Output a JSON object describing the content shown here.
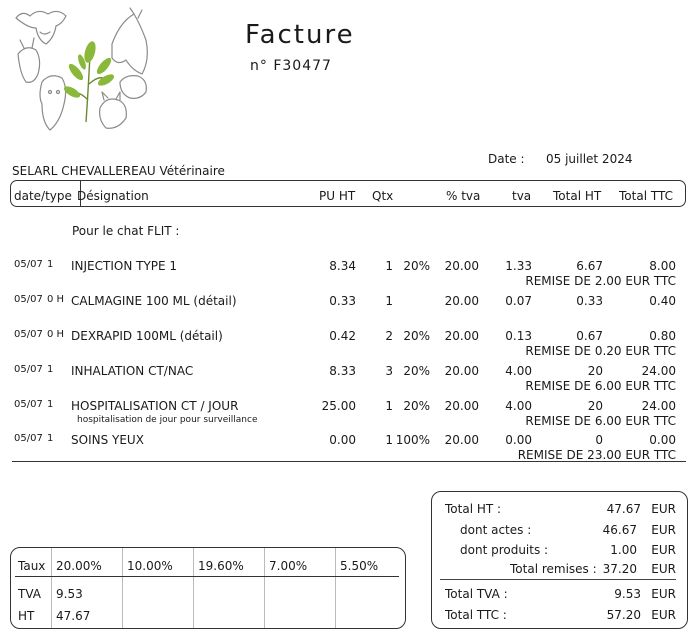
{
  "invoice": {
    "title": "Facture",
    "number": "n° F30477",
    "company": "SELARL CHEVALLEREAU Vétérinaire",
    "date_label": "Date :",
    "date": "05 juillet 2024"
  },
  "columns": {
    "date_type": "date/type",
    "designation": "Désignation",
    "pu_ht": "PU HT",
    "qty": "Qtx",
    "pct_tva": "% tva",
    "tva": "tva",
    "total_ht": "Total HT",
    "total_ttc": "Total TTC"
  },
  "section_label": "Pour le chat FLIT :",
  "items": [
    {
      "date": "05/07",
      "type": "1",
      "designation": "INJECTION TYPE 1",
      "note": "",
      "pu_ht": "8.34",
      "qty": "1",
      "discount": "20%",
      "pct_tva": "20.00",
      "tva": "1.33",
      "total_ht": "6.67",
      "total_ttc": "8.00",
      "remise": "REMISE DE 2.00 EUR TTC"
    },
    {
      "date": "05/07",
      "type": "0 H",
      "designation": "CALMAGINE 100 ML (détail)",
      "note": "",
      "pu_ht": "0.33",
      "qty": "1",
      "discount": "",
      "pct_tva": "20.00",
      "tva": "0.07",
      "total_ht": "0.33",
      "total_ttc": "0.40",
      "remise": ""
    },
    {
      "date": "05/07",
      "type": "0 H",
      "designation": "DEXRAPID 100ML (détail)",
      "note": "",
      "pu_ht": "0.42",
      "qty": "2",
      "discount": "20%",
      "pct_tva": "20.00",
      "tva": "0.13",
      "total_ht": "0.67",
      "total_ttc": "0.80",
      "remise": "REMISE DE 0.20 EUR TTC"
    },
    {
      "date": "05/07",
      "type": "1",
      "designation": "INHALATION CT/NAC",
      "note": "",
      "pu_ht": "8.33",
      "qty": "3",
      "discount": "20%",
      "pct_tva": "20.00",
      "tva": "4.00",
      "total_ht": "20",
      "total_ttc": "24.00",
      "remise": "REMISE DE 6.00 EUR TTC"
    },
    {
      "date": "05/07",
      "type": "1",
      "designation": "HOSPITALISATION CT / JOUR",
      "note": "hospitalisation de jour pour surveillance",
      "pu_ht": "25.00",
      "qty": "1",
      "discount": "20%",
      "pct_tva": "20.00",
      "tva": "4.00",
      "total_ht": "20",
      "total_ttc": "24.00",
      "remise": "REMISE DE 6.00 EUR TTC"
    },
    {
      "date": "05/07",
      "type": "1",
      "designation": "SOINS YEUX",
      "note": "",
      "pu_ht": "0.00",
      "qty": "1",
      "discount": "100%",
      "pct_tva": "20.00",
      "tva": "0.00",
      "total_ht": "0",
      "total_ttc": "0.00",
      "remise": "REMISE DE 23.00 EUR TTC"
    }
  ],
  "vat_table": {
    "rate_label": "Taux",
    "tva_label": "TVA",
    "ht_label": "HT",
    "rates": [
      "20.00%",
      "10.00%",
      "19.60%",
      "7.00%",
      "5.50%"
    ],
    "tva_values": [
      "9.53",
      "",
      "",
      "",
      ""
    ],
    "ht_values": [
      "47.67",
      "",
      "",
      "",
      ""
    ]
  },
  "totals": {
    "total_ht_label": "Total HT :",
    "total_ht": "47.67",
    "actes_label": "dont actes :",
    "actes": "46.67",
    "produits_label": "dont produits :",
    "produits": "1.00",
    "remises_label": "Total remises :",
    "remises": "37.20",
    "total_tva_label": "Total TVA :",
    "total_tva": "9.53",
    "total_ttc_label": "Total TTC :",
    "total_ttc": "57.20",
    "currency": "EUR"
  }
}
